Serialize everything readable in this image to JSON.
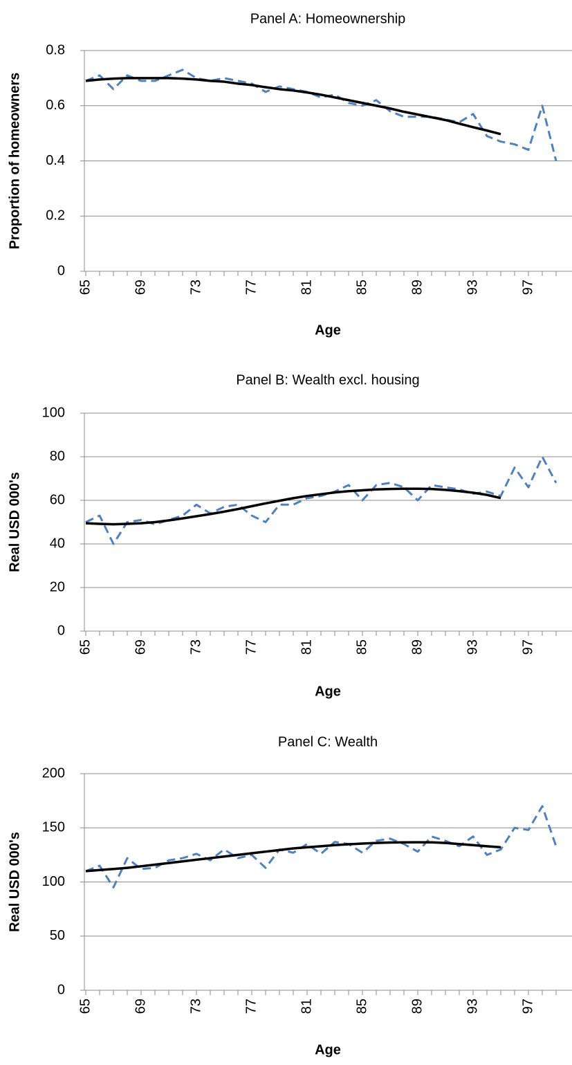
{
  "chart_data": [
    {
      "type": "line",
      "title": "Panel A: Homeownership",
      "x_label": "Age",
      "y_label": "Proportion of homeowners",
      "categories": [
        "65",
        null,
        null,
        null,
        "69",
        null,
        null,
        null,
        "73",
        null,
        null,
        null,
        "77",
        null,
        null,
        null,
        "81",
        null,
        null,
        null,
        "85",
        null,
        null,
        null,
        "89",
        null,
        null,
        null,
        "93",
        null,
        null,
        null,
        "97",
        null,
        null
      ],
      "series": [
        {
          "color": "#4f81bd",
          "dashed": true,
          "values": [
            0.69,
            0.71,
            0.66,
            0.71,
            0.69,
            0.69,
            0.71,
            0.73,
            0.7,
            0.69,
            0.7,
            0.69,
            0.68,
            0.65,
            0.67,
            0.66,
            0.65,
            0.63,
            0.64,
            0.61,
            0.6,
            0.62,
            0.58,
            0.56,
            0.56,
            0.56,
            0.55,
            0.54,
            0.57,
            0.49,
            0.47,
            0.46,
            0.44,
            0.6,
            0.4
          ]
        },
        {
          "color": "#000000",
          "dashed": false,
          "values": [
            0.69,
            0.695,
            0.698,
            0.7,
            0.7,
            0.7,
            0.7,
            0.698,
            0.695,
            0.69,
            0.687,
            0.68,
            0.675,
            0.667,
            0.66,
            0.655,
            0.648,
            0.64,
            0.63,
            0.62,
            0.61,
            0.6,
            0.59,
            0.578,
            0.568,
            0.558,
            0.548,
            0.535,
            0.522,
            0.51,
            0.497,
            null,
            null,
            null,
            null
          ]
        }
      ],
      "ylim": [
        0,
        0.8
      ],
      "yticks": [
        0,
        0.2,
        0.4,
        0.6,
        0.8
      ],
      "grid": true
    },
    {
      "type": "line",
      "title": "Panel B: Wealth excl. housing",
      "x_label": "Age",
      "y_label": "Real USD 000's",
      "categories": [
        "65",
        null,
        null,
        null,
        "69",
        null,
        null,
        null,
        "73",
        null,
        null,
        null,
        "77",
        null,
        null,
        null,
        "81",
        null,
        null,
        null,
        "85",
        null,
        null,
        null,
        "89",
        null,
        null,
        null,
        "93",
        null,
        null,
        null,
        "97",
        null,
        null
      ],
      "series": [
        {
          "color": "#4f81bd",
          "dashed": true,
          "values": [
            50,
            53,
            40,
            50,
            51,
            49,
            51,
            53,
            58,
            54,
            57,
            58,
            53,
            50,
            58,
            58,
            61,
            62,
            64,
            67,
            60,
            67,
            68,
            66,
            60,
            67,
            66,
            65,
            63,
            64,
            62,
            75,
            66,
            80,
            68
          ]
        },
        {
          "color": "#000000",
          "dashed": false,
          "values": [
            49.5,
            49.2,
            49,
            49.2,
            49.5,
            50,
            50.8,
            51.7,
            52.7,
            53.7,
            54.8,
            56,
            57.3,
            58.6,
            59.8,
            61,
            62,
            62.8,
            63.6,
            64.2,
            64.6,
            65,
            65.2,
            65.3,
            65.3,
            65.2,
            64.8,
            64.2,
            63.5,
            62.5,
            61,
            null,
            null,
            null,
            null
          ]
        }
      ],
      "ylim": [
        0,
        100
      ],
      "yticks": [
        0,
        20,
        40,
        60,
        80,
        100
      ],
      "grid": true
    },
    {
      "type": "line",
      "title": "Panel C: Wealth",
      "x_label": "Age",
      "y_label": "Real USD 000's",
      "categories": [
        "65",
        null,
        null,
        null,
        "69",
        null,
        null,
        null,
        "73",
        null,
        null,
        null,
        "77",
        null,
        null,
        null,
        "81",
        null,
        null,
        null,
        "85",
        null,
        null,
        null,
        "89",
        null,
        null,
        null,
        "93",
        null,
        null,
        null,
        "97",
        null,
        null
      ],
      "series": [
        {
          "color": "#4f81bd",
          "dashed": true,
          "values": [
            110,
            115,
            95,
            122,
            112,
            113,
            120,
            122,
            126,
            120,
            130,
            122,
            125,
            113,
            130,
            127,
            135,
            126,
            137,
            135,
            127,
            138,
            140,
            135,
            128,
            142,
            138,
            133,
            142,
            125,
            130,
            150,
            148,
            170,
            133
          ]
        },
        {
          "color": "#000000",
          "dashed": false,
          "values": [
            110,
            111,
            112,
            113,
            114.5,
            116,
            117.5,
            119,
            120.5,
            122,
            123.5,
            125,
            126.5,
            128,
            129.5,
            131,
            132,
            133,
            134,
            134.8,
            135.5,
            136,
            136.4,
            136.6,
            136.7,
            136.6,
            136,
            135,
            134,
            133,
            132,
            null,
            null,
            null,
            null
          ]
        }
      ],
      "ylim": [
        0,
        200
      ],
      "yticks": [
        0,
        50,
        100,
        150,
        200
      ],
      "grid": true
    }
  ]
}
